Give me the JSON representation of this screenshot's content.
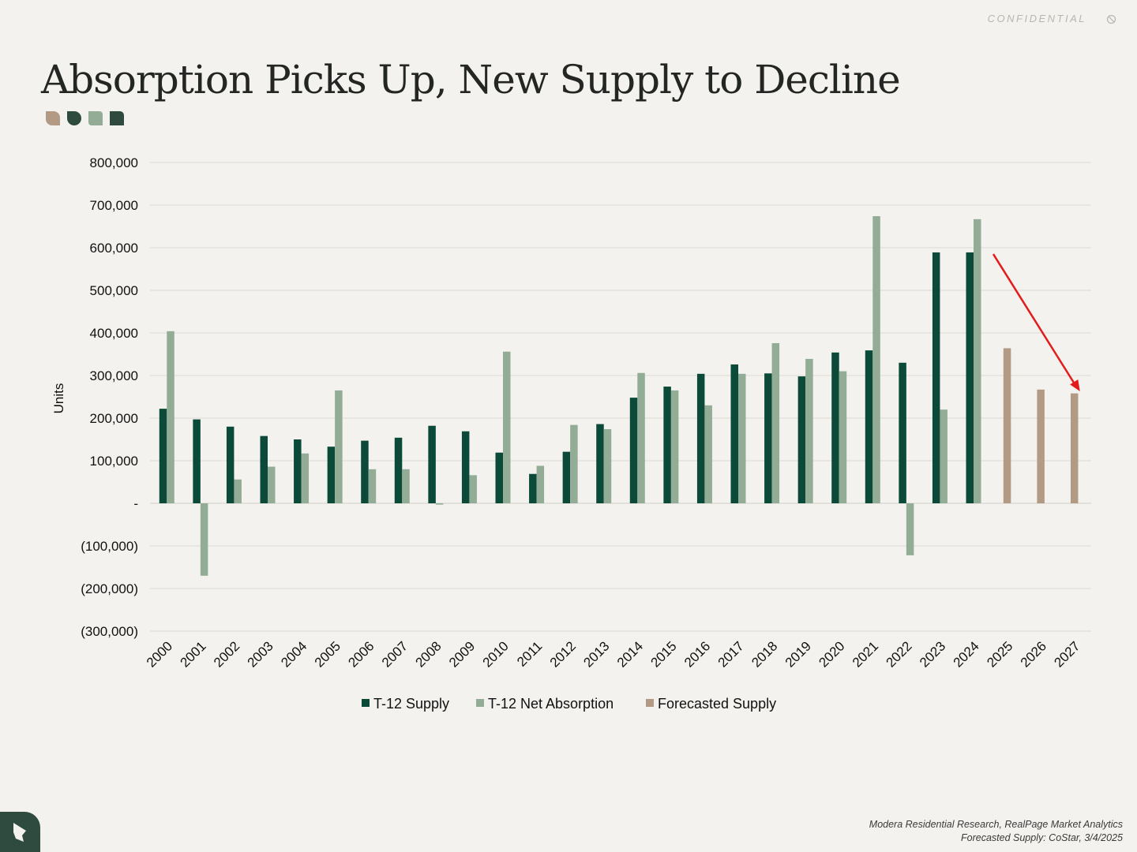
{
  "header": {
    "confidential_label": "CONFIDENTIAL",
    "title": "Absorption Picks Up, New Supply to Decline",
    "shape_colors": [
      "#b39a85",
      "#2f4a3f",
      "#93ac96",
      "#2f4a3f"
    ]
  },
  "footer": {
    "source_line1": "Modera Residential Research, RealPage Market Analytics",
    "source_line2": "Forecasted Supply: CoStar, 3/4/2025"
  },
  "chart_data": {
    "type": "bar",
    "ylabel": "Units",
    "ylim": [
      -300000,
      800000
    ],
    "yticks": [
      800000,
      700000,
      600000,
      500000,
      400000,
      300000,
      200000,
      100000,
      0,
      -100000,
      -200000,
      -300000
    ],
    "ytick_labels": [
      "800,000",
      "700,000",
      "600,000",
      "500,000",
      "400,000",
      "300,000",
      "200,000",
      "100,000",
      "-",
      "(100,000)",
      "(200,000)",
      "(300,000)"
    ],
    "grid": true,
    "legend_position": "bottom",
    "categories": [
      "2000",
      "2001",
      "2002",
      "2003",
      "2004",
      "2005",
      "2006",
      "2007",
      "2008",
      "2009",
      "2010",
      "2011",
      "2012",
      "2013",
      "2014",
      "2015",
      "2016",
      "2017",
      "2018",
      "2019",
      "2020",
      "2021",
      "2022",
      "2023",
      "2024",
      "2025",
      "2026",
      "2027"
    ],
    "series": [
      {
        "name": "T-12 Supply",
        "color": "#0b4a38",
        "values": [
          222000,
          197000,
          180000,
          158000,
          150000,
          133000,
          147000,
          154000,
          182000,
          169000,
          119000,
          69000,
          121000,
          186000,
          248000,
          274000,
          304000,
          326000,
          305000,
          298000,
          354000,
          359000,
          330000,
          589000,
          589000,
          null,
          null,
          null
        ]
      },
      {
        "name": "T-12 Net Absorption",
        "color": "#93ac96",
        "values": [
          404000,
          -170000,
          56000,
          86000,
          117000,
          265000,
          80000,
          80000,
          -3000,
          66000,
          356000,
          88000,
          184000,
          174000,
          306000,
          265000,
          230000,
          304000,
          376000,
          339000,
          310000,
          674000,
          -122000,
          220000,
          667000,
          null,
          null,
          null
        ]
      },
      {
        "name": "Forecasted Supply",
        "color": "#b39a85",
        "values": [
          null,
          null,
          null,
          null,
          null,
          null,
          null,
          null,
          null,
          null,
          null,
          null,
          null,
          null,
          null,
          null,
          null,
          null,
          null,
          null,
          null,
          null,
          null,
          null,
          null,
          364000,
          267000,
          258000
        ]
      }
    ],
    "annotations": [
      {
        "type": "arrow",
        "color": "#e31b1b",
        "from": {
          "x": "2024",
          "y": 585000
        },
        "to": {
          "x": "2027",
          "y": 263000
        }
      }
    ]
  }
}
